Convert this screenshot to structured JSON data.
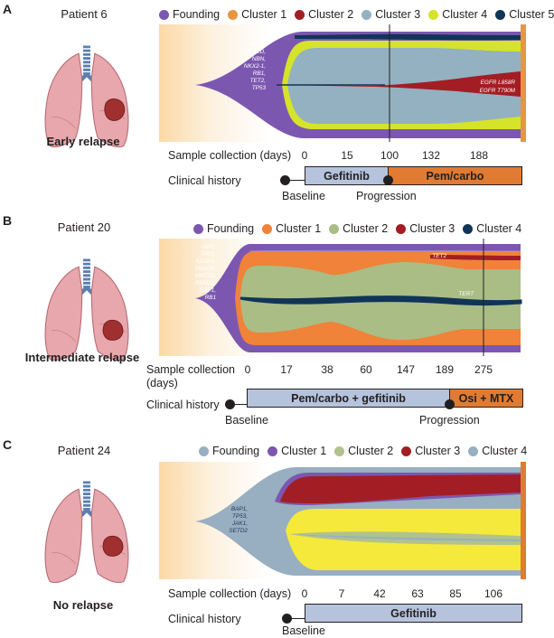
{
  "colors": {
    "founding_a": "#7c57b0",
    "cluster1": "#f0823a",
    "cluster1_a": "#e9953f",
    "cluster2": "#a9bd85",
    "cluster2_a": "#a21e24",
    "cluster3": "#a21e24",
    "cluster3_a": "#93b1c1",
    "cluster4_a": "#d5e32a",
    "cluster5_a": "#113557",
    "navy": "#113557",
    "founding_c": "#98afc1",
    "cluster1_c": "#7c57b0",
    "cluster2_c": "#b1c28b",
    "cluster3_c": "#a21e24",
    "cluster4_c": "#98afc1",
    "yellow_c": "#f5e93c",
    "bar_blue": "#b6c3dd",
    "bar_orange": "#e07b31"
  },
  "icons": {
    "lungs": "lungs-with-tumor-icon",
    "milestone": "filled-circle-icon"
  },
  "panels": [
    {
      "label": "A",
      "patient": "Patient 6",
      "status": "Early relapse",
      "legend": [
        {
          "name": "Founding",
          "color": "#7c57b0"
        },
        {
          "name": "Cluster 1",
          "color": "#e9953f"
        },
        {
          "name": "Cluster 2",
          "color": "#a21e24"
        },
        {
          "name": "Cluster 3",
          "color": "#93b1c1"
        },
        {
          "name": "Cluster 4",
          "color": "#d5e32a"
        },
        {
          "name": "Cluster 5",
          "color": "#113557"
        }
      ],
      "mutations": [
        "TERT",
        "APC,",
        "KEAP1,",
        "KMT2D,",
        "NBN,",
        "NKX2-1,",
        "RB1,",
        "TET2,",
        "TP53"
      ],
      "annotations": [
        "EGFR L858R",
        "EGFR T790M"
      ],
      "sample_label": "Sample collection (days)",
      "days": [
        "0",
        "15",
        "100",
        "132",
        "188"
      ],
      "history_label": "Clinical history",
      "treatments": [
        "Gefitinib",
        "Pem/carbo"
      ],
      "milestones": [
        "Baseline",
        "Progression"
      ]
    },
    {
      "label": "B",
      "patient": "Patient 20",
      "status": "Intermediate relapse",
      "legend": [
        {
          "name": "Founding",
          "color": "#7c57b0"
        },
        {
          "name": "Cluster 1",
          "color": "#f0823a"
        },
        {
          "name": "Cluster 2",
          "color": "#a9bd85"
        },
        {
          "name": "Cluster 3",
          "color": "#a21e24"
        },
        {
          "name": "Cluster 4",
          "color": "#113557"
        }
      ],
      "mutations": [
        "APC,",
        "TP53,",
        "KEAP1,",
        "SMAD4,",
        "KMT2D,",
        "RBM10,",
        "BAP1,",
        "RB1"
      ],
      "annotations": [
        "TET2",
        "TERT"
      ],
      "sample_label_1": "Sample collection",
      "sample_label_2": "(days)",
      "days": [
        "0",
        "17",
        "38",
        "60",
        "147",
        "189",
        "275"
      ],
      "history_label": "Clinical history",
      "treatments": [
        "Pem/carbo + gefitinib",
        "Osi + MTX"
      ],
      "milestones": [
        "Baseline",
        "Progression"
      ]
    },
    {
      "label": "C",
      "patient": "Patient 24",
      "status": "No relapse",
      "legend": [
        {
          "name": "Founding",
          "color": "#98afc1"
        },
        {
          "name": "Cluster 1",
          "color": "#7c57b0"
        },
        {
          "name": "Cluster 2",
          "color": "#b1c28b"
        },
        {
          "name": "Cluster 3",
          "color": "#a21e24"
        },
        {
          "name": "Cluster 4",
          "color": "#98afc1"
        }
      ],
      "mutations": [
        "BAP1,",
        "TP53,",
        "JAK1,",
        "SETD2"
      ],
      "sample_label": "Sample collection (days)",
      "days": [
        "0",
        "7",
        "42",
        "63",
        "85",
        "106"
      ],
      "history_label": "Clinical history",
      "treatments": [
        "Gefitinib"
      ],
      "milestones": [
        "Baseline"
      ]
    }
  ]
}
